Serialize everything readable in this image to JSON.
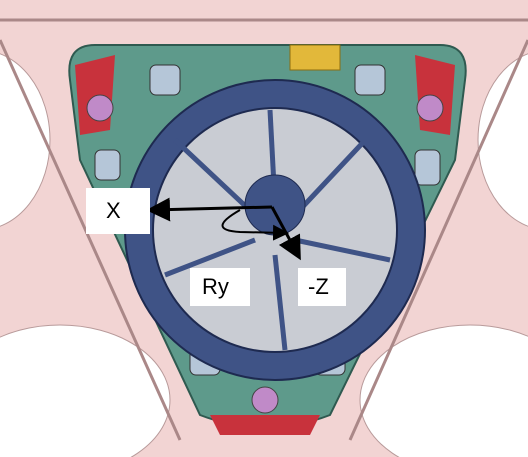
{
  "labels": {
    "x": "X",
    "ry": "Ry",
    "z": "-Z"
  }
}
